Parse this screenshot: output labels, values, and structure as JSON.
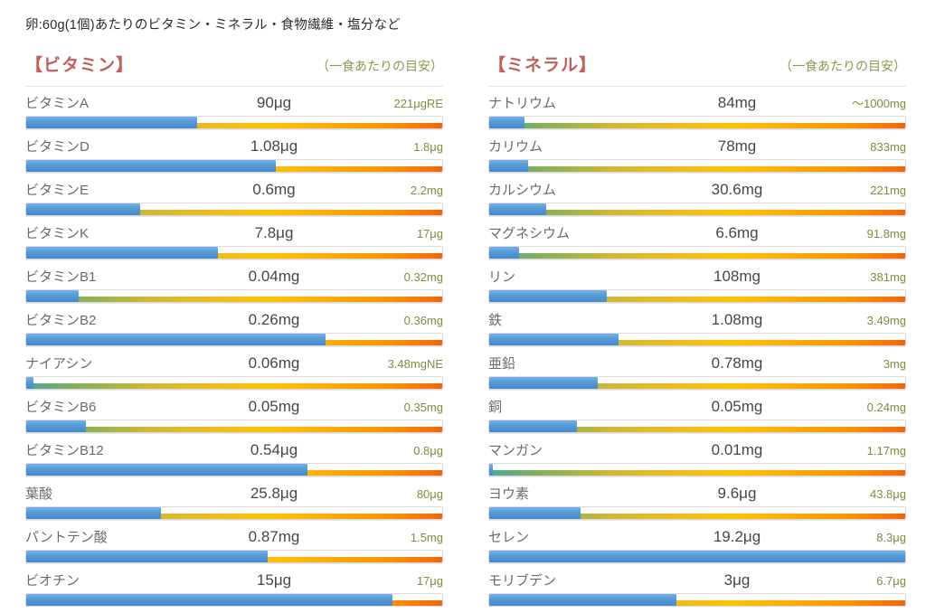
{
  "page": {
    "title": "卵:60g(1個)あたりのビタミン・ミネラル・食物繊維・塩分など"
  },
  "colors": {
    "section_title": "#c05f5c",
    "note_text": "#8a9a50",
    "reference_text": "#7e8e3e",
    "bar_fill_blue": "#4f96d5",
    "scale_gradient": [
      "#4ba79a",
      "#8db054",
      "#ffc103",
      "#f2660b"
    ]
  },
  "sections": [
    {
      "title": "【ビタミン】",
      "note": "（一食あたりの目安）",
      "rows": [
        {
          "name": "ビタミンA",
          "value": "90μg",
          "reference": "221μgRE",
          "percent": 41
        },
        {
          "name": "ビタミンD",
          "value": "1.08μg",
          "reference": "1.8μg",
          "percent": 60
        },
        {
          "name": "ビタミンE",
          "value": "0.6mg",
          "reference": "2.2mg",
          "percent": 27.3
        },
        {
          "name": "ビタミンK",
          "value": "7.8μg",
          "reference": "17μg",
          "percent": 46
        },
        {
          "name": "ビタミンB1",
          "value": "0.04mg",
          "reference": "0.32mg",
          "percent": 12.5
        },
        {
          "name": "ビタミンB2",
          "value": "0.26mg",
          "reference": "0.36mg",
          "percent": 72
        },
        {
          "name": "ナイアシン",
          "value": "0.06mg",
          "reference": "3.48mgNE",
          "percent": 1.7
        },
        {
          "name": "ビタミンB6",
          "value": "0.05mg",
          "reference": "0.35mg",
          "percent": 14.3
        },
        {
          "name": "ビタミンB12",
          "value": "0.54μg",
          "reference": "0.8μg",
          "percent": 67.5
        },
        {
          "name": "葉酸",
          "value": "25.8μg",
          "reference": "80μg",
          "percent": 32.3
        },
        {
          "name": "パントテン酸",
          "value": "0.87mg",
          "reference": "1.5mg",
          "percent": 58
        },
        {
          "name": "ビオチン",
          "value": "15μg",
          "reference": "17μg",
          "percent": 88
        }
      ]
    },
    {
      "title": "【ミネラル】",
      "note": "（一食あたりの目安）",
      "rows": [
        {
          "name": "ナトリウム",
          "value": "84mg",
          "reference": "～1000mg",
          "percent": 8.4
        },
        {
          "name": "カリウム",
          "value": "78mg",
          "reference": "833mg",
          "percent": 9.4
        },
        {
          "name": "カルシウム",
          "value": "30.6mg",
          "reference": "221mg",
          "percent": 13.8
        },
        {
          "name": "マグネシウム",
          "value": "6.6mg",
          "reference": "91.8mg",
          "percent": 7.2
        },
        {
          "name": "リン",
          "value": "108mg",
          "reference": "381mg",
          "percent": 28.3
        },
        {
          "name": "鉄",
          "value": "1.08mg",
          "reference": "3.49mg",
          "percent": 31
        },
        {
          "name": "亜鉛",
          "value": "0.78mg",
          "reference": "3mg",
          "percent": 26
        },
        {
          "name": "銅",
          "value": "0.05mg",
          "reference": "0.24mg",
          "percent": 21
        },
        {
          "name": "マンガン",
          "value": "0.01mg",
          "reference": "1.17mg",
          "percent": 0.9
        },
        {
          "name": "ヨウ素",
          "value": "9.6μg",
          "reference": "43.8μg",
          "percent": 22
        },
        {
          "name": "セレン",
          "value": "19.2μg",
          "reference": "8.3μg",
          "percent": 100
        },
        {
          "name": "モリブデン",
          "value": "3μg",
          "reference": "6.7μg",
          "percent": 45
        }
      ]
    }
  ],
  "chart_data": [
    {
      "type": "bar",
      "title": "ビタミン",
      "subtitle": "一食あたりの目安に対する含有量（卵:60g/1個）",
      "categories": [
        "ビタミンA",
        "ビタミンD",
        "ビタミンE",
        "ビタミンK",
        "ビタミンB1",
        "ビタミンB2",
        "ナイアシン",
        "ビタミンB6",
        "ビタミンB12",
        "葉酸",
        "パントテン酸",
        "ビオチン"
      ],
      "values": [
        90,
        1.08,
        0.6,
        7.8,
        0.04,
        0.26,
        0.06,
        0.05,
        0.54,
        25.8,
        0.87,
        15
      ],
      "value_units": [
        "μg",
        "μg",
        "mg",
        "μg",
        "mg",
        "mg",
        "mg",
        "mg",
        "μg",
        "μg",
        "mg",
        "μg"
      ],
      "reference_values": [
        221,
        1.8,
        2.2,
        17,
        0.32,
        0.36,
        3.48,
        0.35,
        0.8,
        80,
        1.5,
        17
      ],
      "reference_labels": [
        "221μgRE",
        "1.8μg",
        "2.2mg",
        "17μg",
        "0.32mg",
        "0.36mg",
        "3.48mgNE",
        "0.35mg",
        "0.8μg",
        "80μg",
        "1.5mg",
        "17μg"
      ],
      "percent_of_reference": [
        41,
        60,
        27.3,
        46,
        12.5,
        72,
        1.7,
        14.3,
        67.5,
        32.3,
        58,
        88
      ],
      "xlabel": "",
      "ylabel": "",
      "xlim_percent": [
        0,
        100
      ],
      "grid": false,
      "legend": false
    },
    {
      "type": "bar",
      "title": "ミネラル",
      "subtitle": "一食あたりの目安に対する含有量（卵:60g/1個）",
      "categories": [
        "ナトリウム",
        "カリウム",
        "カルシウム",
        "マグネシウム",
        "リン",
        "鉄",
        "亜鉛",
        "銅",
        "マンガン",
        "ヨウ素",
        "セレン",
        "モリブデン"
      ],
      "values": [
        84,
        78,
        30.6,
        6.6,
        108,
        1.08,
        0.78,
        0.05,
        0.01,
        9.6,
        19.2,
        3
      ],
      "value_units": [
        "mg",
        "mg",
        "mg",
        "mg",
        "mg",
        "mg",
        "mg",
        "mg",
        "mg",
        "μg",
        "μg",
        "μg"
      ],
      "reference_values": [
        1000,
        833,
        221,
        91.8,
        381,
        3.49,
        3,
        0.24,
        1.17,
        43.8,
        8.3,
        6.7
      ],
      "reference_labels": [
        "～1000mg",
        "833mg",
        "221mg",
        "91.8mg",
        "381mg",
        "3.49mg",
        "3mg",
        "0.24mg",
        "1.17mg",
        "43.8μg",
        "8.3μg",
        "6.7μg"
      ],
      "percent_of_reference": [
        8.4,
        9.4,
        13.8,
        7.2,
        28.3,
        31,
        26,
        21,
        0.9,
        22,
        100,
        45
      ],
      "xlabel": "",
      "ylabel": "",
      "xlim_percent": [
        0,
        100
      ],
      "grid": false,
      "legend": false
    }
  ]
}
